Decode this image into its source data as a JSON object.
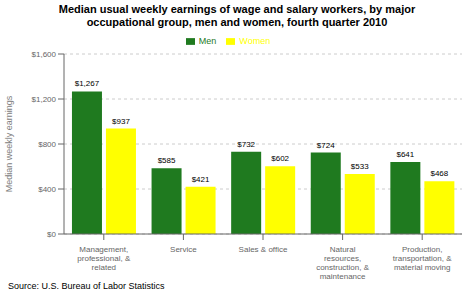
{
  "chart_data": {
    "type": "bar",
    "title": "Median usual weekly earnings of wage and salary workers, by major\noccupational group, men and women, fourth quarter 2010",
    "categories": [
      "Management,\nprofessional, &\nrelated",
      "Service",
      "Sales & office",
      "Natural\nresources,\nconstruction, &\nmaintenance",
      "Production,\ntransportation, &\nmaterial moving"
    ],
    "series": [
      {
        "name": "Men",
        "color": "#1f7a1f",
        "values": [
          1267,
          585,
          732,
          724,
          641
        ],
        "value_labels": [
          "$1,267",
          "$585",
          "$732",
          "$724",
          "$641"
        ]
      },
      {
        "name": "Women",
        "color": "#ffff00",
        "values": [
          937,
          421,
          602,
          533,
          468
        ],
        "value_labels": [
          "$937",
          "$421",
          "$602",
          "$533",
          "$468"
        ]
      }
    ],
    "ylabel": "Median weekly earnings",
    "ylim": [
      0,
      1600
    ],
    "yticks": [
      {
        "value": 0,
        "label": "$0"
      },
      {
        "value": 400,
        "label": "$400"
      },
      {
        "value": 800,
        "label": "$800"
      },
      {
        "value": 1200,
        "label": "$1,200"
      },
      {
        "value": 1600,
        "label": "$1,600"
      }
    ],
    "grid": true,
    "legend": "upper center",
    "data_labels": true,
    "annotations": [
      "Source: U.S. Bureau of Labor Statistics"
    ]
  }
}
